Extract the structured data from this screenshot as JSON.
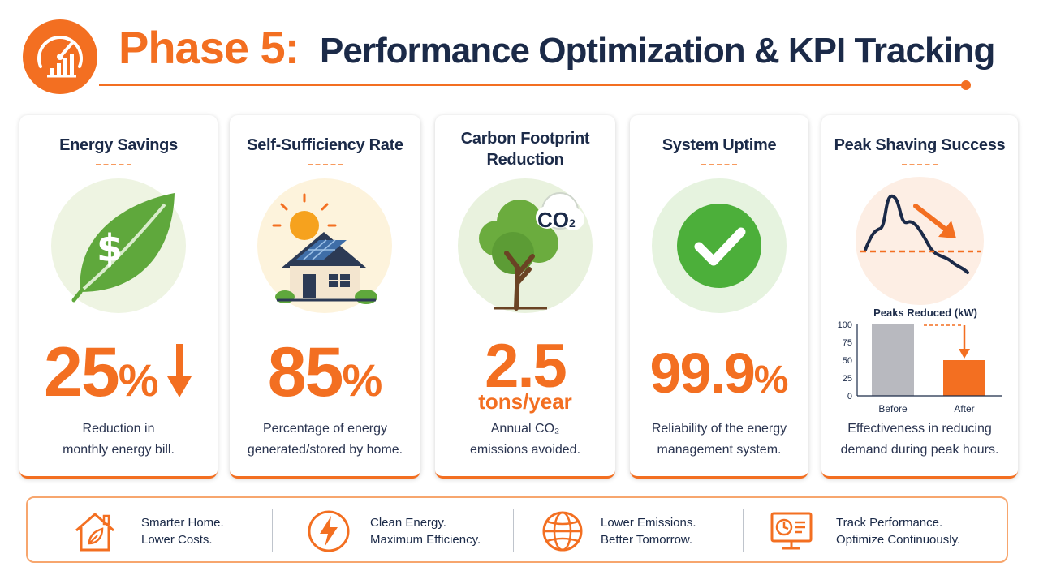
{
  "header": {
    "phase_label": "Phase 5:",
    "title": "Performance Optimization & KPI Tracking",
    "logo_icon": "speedometer-bar-chart-icon",
    "accent_color": "#f36f21",
    "navy_color": "#1b2a48"
  },
  "kpis": [
    {
      "title": "Energy Savings",
      "value": "25",
      "unit": "%",
      "icon": "leaf-dollar-icon",
      "indicator_icon": "down-arrow-icon",
      "desc_line1": "Reduction in",
      "desc_line2": "monthly energy bill."
    },
    {
      "title": "Self-Sufficiency Rate",
      "value": "85",
      "unit": "%",
      "icon": "solar-house-icon",
      "desc_line1": "Percentage of energy",
      "desc_line2": "generated/stored by home."
    },
    {
      "title_line1": "Carbon Footprint",
      "title_line2": "Reduction",
      "value": "2.5",
      "unit": "tons/year",
      "icon": "tree-co2-icon",
      "co2_label": "CO",
      "co2_sub": "2",
      "desc_line1": "Annual CO₂",
      "desc_line2": "emissions avoided."
    },
    {
      "title": "System Uptime",
      "value": "99.9",
      "unit": "%",
      "icon": "check-circle-icon",
      "desc_line1": "Reliability of the energy",
      "desc_line2": "management system."
    },
    {
      "title": "Peak Shaving Success",
      "icon": "peak-curve-icon",
      "desc_line1": "Effectiveness in reducing",
      "desc_line2": "demand during peak hours."
    }
  ],
  "chart_data": {
    "type": "bar",
    "title": "Peaks Reduced (kW)",
    "categories": [
      "Before",
      "After"
    ],
    "values": [
      100,
      50
    ],
    "ylim": [
      0,
      100
    ],
    "yticks": [
      "100",
      "75",
      "50",
      "25",
      "0"
    ],
    "colors": [
      "#b8b9bf",
      "#f36f21"
    ],
    "legend": "none",
    "grid": false
  },
  "banner": [
    {
      "icon": "house-leaf-icon",
      "line1": "Smarter Home.",
      "line2": "Lower Costs."
    },
    {
      "icon": "lightning-bolt-icon",
      "line1": "Clean Energy.",
      "line2": "Maximum Efficiency."
    },
    {
      "icon": "globe-icon",
      "line1": "Lower Emissions.",
      "line2": "Better Tomorrow."
    },
    {
      "icon": "monitor-dashboard-icon",
      "line1": "Track Performance.",
      "line2": "Optimize Continuously."
    }
  ]
}
